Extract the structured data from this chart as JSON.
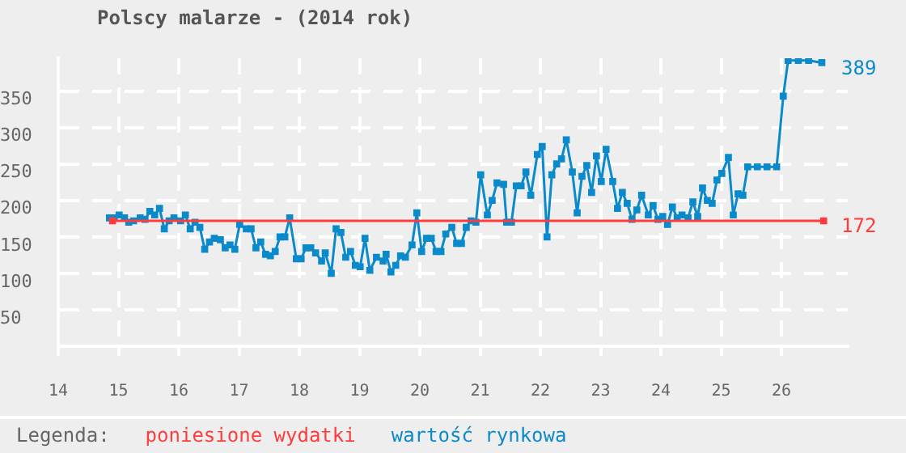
{
  "chart_data": {
    "type": "line",
    "title": "Polscy malarze - (2014 rok)",
    "legend_title": "Legenda:",
    "legend": "bottom",
    "grid": true,
    "marker": "square",
    "line_style": "solid",
    "xlim": [
      14,
      27.1
    ],
    "xticks": [
      14,
      15,
      16,
      17,
      18,
      19,
      20,
      21,
      22,
      23,
      24,
      25,
      26
    ],
    "ylim": [
      0,
      395
    ],
    "yticks": [
      50,
      100,
      150,
      200,
      250,
      300,
      350
    ],
    "series": [
      {
        "name": "poniesione wydatki",
        "color": "#ff3b3b",
        "x": [
          14.9,
          26.7
        ],
        "values": [
          172,
          172
        ]
      },
      {
        "name": "wartość rynkowa",
        "color": "#0a8acb",
        "x": [
          14.85,
          14.93,
          15.01,
          15.1,
          15.17,
          15.25,
          15.36,
          15.44,
          15.52,
          15.6,
          15.68,
          15.76,
          15.84,
          15.92,
          16.03,
          16.11,
          16.19,
          16.27,
          16.35,
          16.43,
          16.51,
          16.59,
          16.69,
          16.77,
          16.85,
          16.93,
          17.01,
          17.12,
          17.2,
          17.28,
          17.36,
          17.44,
          17.52,
          17.6,
          17.68,
          17.76,
          17.84,
          17.95,
          18.03,
          18.11,
          18.19,
          18.27,
          18.37,
          18.43,
          18.53,
          18.61,
          18.69,
          18.77,
          18.85,
          18.93,
          19.01,
          19.09,
          19.17,
          19.28,
          19.39,
          19.44,
          19.52,
          19.6,
          19.68,
          19.76,
          19.87,
          19.95,
          20.03,
          20.11,
          20.19,
          20.27,
          20.35,
          20.43,
          20.53,
          20.61,
          20.69,
          20.77,
          20.85,
          20.93,
          21.01,
          21.12,
          21.2,
          21.28,
          21.39,
          21.44,
          21.52,
          21.6,
          21.68,
          21.76,
          21.84,
          21.95,
          22.03,
          22.11,
          22.19,
          22.27,
          22.35,
          22.43,
          22.53,
          22.61,
          22.69,
          22.77,
          22.85,
          22.93,
          23.01,
          23.09,
          23.2,
          23.28,
          23.36,
          23.44,
          23.52,
          23.6,
          23.68,
          23.79,
          23.87,
          23.95,
          24.03,
          24.11,
          24.19,
          24.27,
          24.35,
          24.45,
          24.53,
          24.61,
          24.69,
          24.77,
          24.85,
          24.93,
          25.01,
          25.12,
          25.2,
          25.28,
          25.36,
          25.44,
          25.6,
          25.76,
          25.92,
          26.03,
          26.11,
          26.28,
          26.45,
          26.67
        ],
        "values": [
          176,
          176,
          180,
          176,
          170,
          172,
          176,
          174,
          185,
          180,
          189,
          161,
          172,
          176,
          172,
          180,
          161,
          170,
          163,
          133,
          143,
          148,
          146,
          135,
          139,
          133,
          167,
          161,
          161,
          135,
          143,
          126,
          124,
          130,
          150,
          150,
          176,
          120,
          120,
          135,
          135,
          128,
          117,
          128,
          100,
          161,
          156,
          122,
          130,
          111,
          109,
          148,
          104,
          122,
          117,
          126,
          102,
          111,
          124,
          122,
          139,
          183,
          130,
          148,
          148,
          130,
          130,
          154,
          163,
          141,
          141,
          163,
          172,
          170,
          235,
          180,
          200,
          224,
          222,
          170,
          170,
          220,
          220,
          239,
          207,
          263,
          274,
          150,
          235,
          250,
          257,
          283,
          239,
          183,
          233,
          248,
          211,
          261,
          226,
          270,
          226,
          189,
          211,
          196,
          174,
          187,
          207,
          180,
          193,
          174,
          178,
          167,
          191,
          176,
          180,
          176,
          198,
          178,
          217,
          200,
          196,
          228,
          237,
          259,
          180,
          209,
          207,
          246,
          246,
          246,
          246,
          343,
          392,
          392,
          392,
          389
        ]
      }
    ],
    "annotations": [
      {
        "text": "389",
        "x": 26.67,
        "y": 389
      },
      {
        "text": "172",
        "x": 26.7,
        "y": 172
      }
    ]
  }
}
